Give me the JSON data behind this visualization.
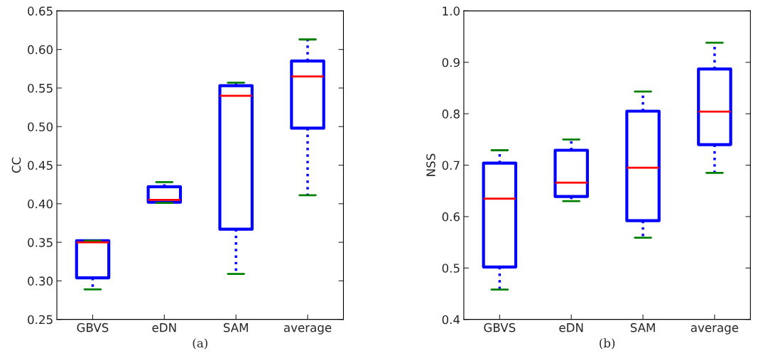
{
  "chart_data": [
    {
      "type": "box",
      "xlabel": "(a)",
      "ylabel": "CC",
      "categories": [
        "GBVS",
        "eDN",
        "SAM",
        "average"
      ],
      "ylim": [
        0.25,
        0.65
      ],
      "yticks": [
        {
          "value": 0.25,
          "label": "0.25"
        },
        {
          "value": 0.3,
          "label": "0.30"
        },
        {
          "value": 0.35,
          "label": "0.35"
        },
        {
          "value": 0.4,
          "label": "0.40"
        },
        {
          "value": 0.45,
          "label": "0.45"
        },
        {
          "value": 0.5,
          "label": "0.50"
        },
        {
          "value": 0.55,
          "label": "0.55"
        },
        {
          "value": 0.6,
          "label": "0.60"
        },
        {
          "value": 0.65,
          "label": "0.65"
        }
      ],
      "grid": false,
      "color": "#0000ff",
      "boxes": [
        {
          "low": 0.289,
          "q1": 0.304,
          "median": 0.35,
          "q3": 0.352,
          "high": 0.352
        },
        {
          "low": 0.401,
          "q1": 0.402,
          "median": 0.405,
          "q3": 0.422,
          "high": 0.428
        },
        {
          "low": 0.309,
          "q1": 0.367,
          "median": 0.54,
          "q3": 0.553,
          "high": 0.557
        },
        {
          "low": 0.411,
          "q1": 0.498,
          "median": 0.565,
          "q3": 0.585,
          "high": 0.613
        }
      ]
    },
    {
      "type": "box",
      "xlabel": "(b)",
      "ylabel": "NSS",
      "categories": [
        "GBVS",
        "eDN",
        "SAM",
        "average"
      ],
      "ylim": [
        0.4,
        1.0
      ],
      "yticks": [
        {
          "value": 0.4,
          "label": "0.4"
        },
        {
          "value": 0.5,
          "label": "0.5"
        },
        {
          "value": 0.6,
          "label": "0.6"
        },
        {
          "value": 0.7,
          "label": "0.7"
        },
        {
          "value": 0.8,
          "label": "0.8"
        },
        {
          "value": 0.9,
          "label": "0.9"
        },
        {
          "value": 1.0,
          "label": "1.0"
        }
      ],
      "grid": false,
      "color": "#0000ff",
      "boxes": [
        {
          "low": 0.458,
          "q1": 0.502,
          "median": 0.635,
          "q3": 0.704,
          "high": 0.729
        },
        {
          "low": 0.63,
          "q1": 0.639,
          "median": 0.666,
          "q3": 0.729,
          "high": 0.75
        },
        {
          "low": 0.559,
          "q1": 0.592,
          "median": 0.695,
          "q3": 0.805,
          "high": 0.843
        },
        {
          "low": 0.685,
          "q1": 0.74,
          "median": 0.804,
          "q3": 0.887,
          "high": 0.938
        }
      ]
    }
  ]
}
